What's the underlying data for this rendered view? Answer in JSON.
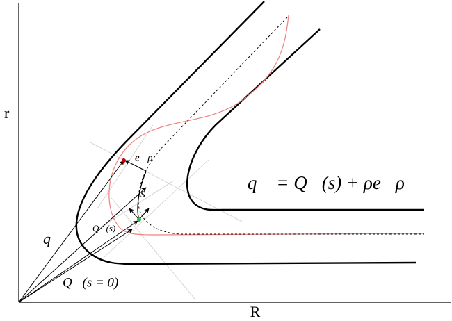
{
  "axes": {
    "x_label": "R",
    "y_label": "r"
  },
  "labels": {
    "q": "q⃗",
    "Q_s": "Q⃗(s)",
    "Q_s0": "Q⃗(s = 0)",
    "e_rho": "e⃗ρ",
    "s": "s",
    "equation": "q⃗ = Q⃗(s) + ρe⃗ρ"
  }
}
